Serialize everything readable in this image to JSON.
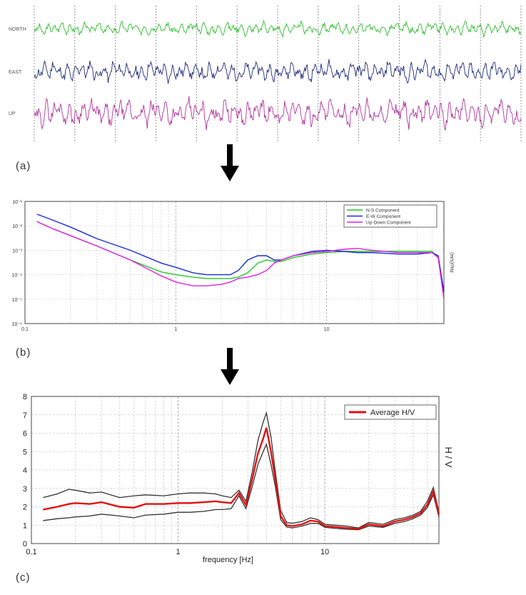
{
  "panel_labels": [
    "(a)",
    "(b)",
    "(c)"
  ],
  "colors": {
    "north": "#2fbf2f",
    "east": "#1f2a7a",
    "up": "#b0359e",
    "ns_component": "#27c427",
    "ew_component": "#1b2cd6",
    "ud_component": "#e020e0",
    "average_hv": "#e01010",
    "std_bounds": "#333333",
    "grid": "#bdbdbd"
  },
  "chart_data": [
    {
      "type": "line",
      "subtype": "seismogram-traces",
      "channels": [
        "NORTH",
        "EAST",
        "UP"
      ],
      "divisions": 12,
      "grid": "dotted-vertical",
      "xlabel": "",
      "ylabel": "",
      "title": ""
    },
    {
      "type": "line",
      "title": "",
      "ylabel": "(m/s)²/Hz",
      "xlabel": "",
      "xscale": "log",
      "yscale": "log",
      "xlim": [
        0.1,
        60
      ],
      "ylim": [
        1e-06,
        0.1
      ],
      "x_tick_labels": [
        "0.1",
        "1",
        "10"
      ],
      "y_tick_labels": [
        "10⁻⁶",
        "10⁻⁵",
        "10⁻⁴",
        "10⁻³",
        "10⁻²",
        "10⁻¹"
      ],
      "legend_position": "top-right",
      "grid": true,
      "x": [
        0.12,
        0.15,
        0.2,
        0.3,
        0.5,
        0.8,
        1.0,
        1.3,
        1.6,
        2.0,
        2.3,
        2.6,
        3.0,
        3.5,
        4.0,
        4.5,
        5.0,
        6.0,
        8.0,
        10.0,
        13.0,
        16.0,
        20.0,
        30.0,
        40.0,
        50.0,
        55.0,
        60.0
      ],
      "series": [
        {
          "name": "N-S Component",
          "values": [
            0.015,
            0.008,
            0.004,
            0.0015,
            0.0004,
            0.00013,
            0.0001,
            8e-05,
            7e-05,
            7e-05,
            7e-05,
            8e-05,
            0.00012,
            0.0003,
            0.0004,
            0.00035,
            0.00035,
            0.0005,
            0.0007,
            0.0008,
            0.0009,
            0.0009,
            0.0009,
            0.0009,
            0.0009,
            0.0009,
            0.0005,
            1.5e-05
          ]
        },
        {
          "name": "E-W Component",
          "values": [
            0.03,
            0.018,
            0.009,
            0.003,
            0.001,
            0.0003,
            0.0002,
            0.00012,
            0.0001,
            0.0001,
            0.0001,
            0.00015,
            0.0004,
            0.0006,
            0.0006,
            0.0004,
            0.0004,
            0.0006,
            0.0009,
            0.001,
            0.0009,
            0.0008,
            0.0008,
            0.0007,
            0.0007,
            0.0008,
            0.0006,
            2e-05
          ]
        },
        {
          "name": "Up-Down Component",
          "values": [
            0.015,
            0.008,
            0.004,
            0.0015,
            0.0004,
            9e-05,
            5e-05,
            3.5e-05,
            3.5e-05,
            4e-05,
            5e-05,
            7e-05,
            8e-05,
            0.0001,
            0.00015,
            0.0003,
            0.0004,
            0.0006,
            0.0008,
            0.0009,
            0.0011,
            0.0012,
            0.001,
            0.0008,
            0.0008,
            0.0008,
            0.0005,
            1e-05
          ]
        }
      ]
    },
    {
      "type": "line",
      "title": "",
      "xlabel": "frequency [Hz]",
      "ylabel": "H / V",
      "xscale": "log",
      "xlim": [
        0.1,
        60
      ],
      "ylim": [
        0,
        8
      ],
      "x_tick_labels": [
        "0.1",
        "1",
        "10"
      ],
      "y_tick_labels": [
        "0",
        "1",
        "2",
        "3",
        "4",
        "5",
        "6",
        "7",
        "8"
      ],
      "legend_position": "top-right",
      "grid": true,
      "x": [
        0.12,
        0.15,
        0.18,
        0.2,
        0.25,
        0.3,
        0.4,
        0.5,
        0.6,
        0.8,
        1.0,
        1.2,
        1.5,
        1.8,
        2.0,
        2.3,
        2.6,
        2.9,
        3.2,
        3.5,
        3.8,
        4.0,
        4.3,
        4.6,
        5.0,
        5.5,
        6.0,
        7.0,
        8.0,
        9.0,
        10.0,
        12.0,
        14.0,
        17.0,
        20.0,
        25.0,
        30.0,
        35.0,
        40.0,
        45.0,
        50.0,
        55.0,
        60.0
      ],
      "series": [
        {
          "name": "Average H/V",
          "values": [
            1.85,
            2.0,
            2.15,
            2.2,
            2.15,
            2.25,
            2.0,
            1.95,
            2.15,
            2.15,
            2.2,
            2.2,
            2.25,
            2.3,
            2.25,
            2.2,
            2.75,
            2.1,
            3.5,
            4.9,
            5.7,
            6.3,
            5.0,
            3.5,
            1.5,
            1.0,
            0.95,
            1.05,
            1.25,
            1.2,
            0.95,
            0.9,
            0.85,
            0.8,
            1.05,
            0.95,
            1.2,
            1.3,
            1.45,
            1.65,
            2.1,
            2.85,
            1.6
          ]
        },
        {
          "name": "",
          "values": [
            2.5,
            2.7,
            2.95,
            2.9,
            2.75,
            2.8,
            2.5,
            2.6,
            2.65,
            2.6,
            2.7,
            2.75,
            2.75,
            2.7,
            2.6,
            2.5,
            2.9,
            2.3,
            3.9,
            5.6,
            6.6,
            7.1,
            5.8,
            3.9,
            1.8,
            1.15,
            1.1,
            1.2,
            1.4,
            1.3,
            1.05,
            1.0,
            0.95,
            0.85,
            1.15,
            1.05,
            1.3,
            1.4,
            1.55,
            1.75,
            2.3,
            3.05,
            1.7
          ]
        },
        {
          "name": "",
          "values": [
            1.25,
            1.35,
            1.4,
            1.45,
            1.5,
            1.6,
            1.5,
            1.4,
            1.55,
            1.6,
            1.7,
            1.7,
            1.75,
            1.85,
            1.85,
            1.9,
            2.6,
            1.9,
            3.1,
            4.3,
            5.0,
            5.4,
            4.3,
            3.1,
            1.3,
            0.9,
            0.85,
            0.95,
            1.1,
            1.1,
            0.88,
            0.82,
            0.78,
            0.75,
            0.95,
            0.88,
            1.1,
            1.2,
            1.35,
            1.55,
            1.95,
            2.65,
            1.45
          ]
        }
      ]
    }
  ]
}
